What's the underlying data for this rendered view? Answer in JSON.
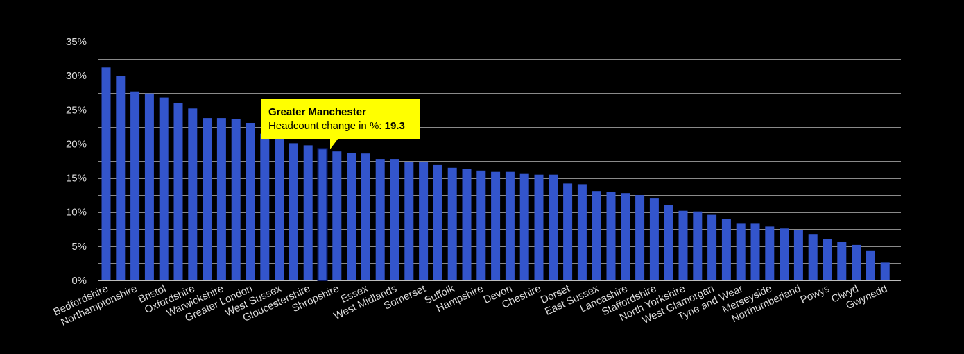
{
  "chart_data": {
    "type": "bar",
    "ylabel": "",
    "xlabel": "",
    "ylim": [
      0,
      35
    ],
    "yticks": [
      0,
      5,
      10,
      15,
      20,
      25,
      30,
      35
    ],
    "ytick_labels": [
      "0%",
      "5%",
      "10%",
      "15%",
      "20%",
      "25%",
      "30%",
      "35%"
    ],
    "grid": true,
    "bar_color": "#3355cc",
    "highlight_index": 15,
    "categories": [
      "Bedfordshire",
      "",
      "Northamptonshire",
      "",
      "Bristol",
      "",
      "Oxfordshire",
      "",
      "Warwickshire",
      "",
      "Greater London",
      "",
      "West Sussex",
      "",
      "Gloucestershire",
      "",
      "Shropshire",
      "",
      "Essex",
      "",
      "West Midlands",
      "",
      "Somerset",
      "",
      "Suffolk",
      "",
      "Hampshire",
      "",
      "Devon",
      "",
      "Cheshire",
      "",
      "Dorset",
      "",
      "East Sussex",
      "",
      "Lancashire",
      "",
      "Staffordshire",
      "",
      "North Yorkshire",
      "",
      "West Glamorgan",
      "",
      "Tyne and Wear",
      "",
      "Merseyside",
      "",
      "Northumberland",
      "",
      "Powys",
      "",
      "Clwyd",
      "",
      "Gwynedd"
    ],
    "values": [
      31.2,
      30.0,
      27.7,
      27.4,
      26.8,
      26.0,
      25.2,
      23.8,
      23.8,
      23.6,
      23.1,
      21.5,
      21.0,
      20.1,
      19.8,
      19.3,
      18.9,
      18.7,
      18.6,
      17.8,
      17.8,
      17.4,
      17.4,
      17.0,
      16.5,
      16.3,
      16.1,
      15.9,
      15.9,
      15.7,
      15.5,
      15.5,
      14.2,
      14.1,
      13.1,
      13.0,
      12.8,
      12.5,
      12.1,
      11.0,
      10.2,
      10.1,
      9.6,
      9.0,
      8.4,
      8.4,
      7.9,
      7.6,
      7.4,
      6.8,
      6.1,
      5.7,
      5.2,
      4.4,
      2.6
    ]
  },
  "tooltip": {
    "title": "Greater Manchester",
    "label": "Headcount change in %: ",
    "value": "19.3"
  }
}
